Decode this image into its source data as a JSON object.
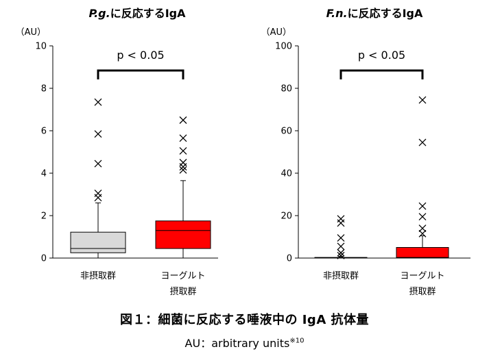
{
  "caption": {
    "title": "図１：細菌に反応する唾液中の IgA 抗体量",
    "note": "AU：arbitrary units",
    "note_ref": "※10"
  },
  "chart_data": [
    {
      "type": "box",
      "title_italic": "P.g.",
      "title_rest": "に反応するIgA",
      "ylabel": "（AU）",
      "ylim": [
        0,
        10
      ],
      "yticks": [
        0,
        2,
        4,
        6,
        8,
        10
      ],
      "significance": "p < 0.05",
      "groups": [
        {
          "label_lines": [
            "非摂取群"
          ],
          "color": "#d9d9d9",
          "whisker_low": 0.0,
          "q1": 0.25,
          "median": 0.45,
          "q3": 1.22,
          "whisker_high": 2.6,
          "outliers": [
            2.85,
            3.05,
            4.45,
            5.85,
            7.35
          ]
        },
        {
          "label_lines": [
            "ヨーグルト",
            "摂取群"
          ],
          "color": "#ff0000",
          "whisker_low": 0.0,
          "q1": 0.45,
          "median": 1.3,
          "q3": 1.75,
          "whisker_high": 3.65,
          "outliers": [
            4.15,
            4.3,
            4.5,
            5.05,
            5.65,
            6.5
          ]
        }
      ]
    },
    {
      "type": "box",
      "title_italic": "F.n.",
      "title_rest": "に反応するIgA",
      "ylabel": "（AU）",
      "ylim": [
        0,
        100
      ],
      "yticks": [
        0,
        20,
        40,
        60,
        80,
        100
      ],
      "significance": "p < 0.05",
      "groups": [
        {
          "label_lines": [
            "非摂取群"
          ],
          "color": "#d9d9d9",
          "whisker_low": 0.0,
          "q1": 0.0,
          "median": 0.0,
          "q3": 0.3,
          "whisker_high": 0.8,
          "outliers": [
            1.2,
            2.5,
            5.5,
            9.5,
            16.5,
            18.5
          ]
        },
        {
          "label_lines": [
            "ヨーグルト",
            "摂取群"
          ],
          "color": "#ff0000",
          "whisker_low": 0.0,
          "q1": 0.0,
          "median": 0.3,
          "q3": 5.0,
          "whisker_high": 10.5,
          "outliers": [
            11.5,
            14.0,
            19.5,
            24.5,
            54.5,
            74.5
          ]
        }
      ]
    }
  ]
}
